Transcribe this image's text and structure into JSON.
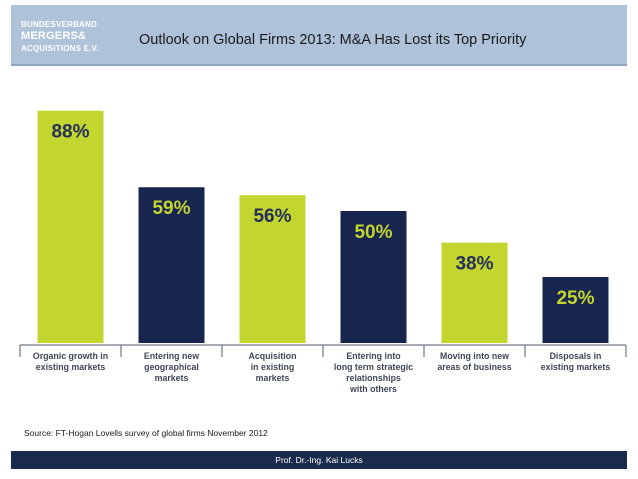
{
  "header": {
    "logo": {
      "line1": "BUNDESVERBAND",
      "line2": "MERGERS&",
      "line3": "ACQUISITIONS E.V."
    },
    "title": "Outlook on Global Firms 2013: M&A Has Lost its Top Priority"
  },
  "colors": {
    "green": "#c3d52f",
    "navy": "#18254f",
    "header_bg": "#aec2d9",
    "footer_bg": "#1a2b4d"
  },
  "chart_data": {
    "type": "bar",
    "title": "Outlook on Global Firms 2013: M&A Has Lost its Top Priority",
    "xlabel": "",
    "ylabel": "",
    "ylim": [
      0,
      100
    ],
    "grid": false,
    "legend": "none",
    "categories": [
      [
        "Organic growth in",
        "existing markets"
      ],
      [
        "Entering new",
        "geographical",
        "markets"
      ],
      [
        "Acquisition",
        "in existing",
        "markets"
      ],
      [
        "Entering into",
        "long term strategic",
        "relationships",
        "with others"
      ],
      [
        "Moving into new",
        "areas of business"
      ],
      [
        "Disposals in",
        "existing markets"
      ]
    ],
    "values": [
      88,
      59,
      56,
      50,
      38,
      25
    ],
    "value_labels": [
      "88%",
      "59%",
      "56%",
      "50%",
      "38%",
      "25%"
    ],
    "bar_colors": [
      "green",
      "navy",
      "green",
      "navy",
      "green",
      "navy"
    ]
  },
  "source": "Source: FT-Hogan Lovells survey of global firms November 2012",
  "footer": {
    "author": "Prof. Dr.-Ing. Kai Lucks"
  }
}
